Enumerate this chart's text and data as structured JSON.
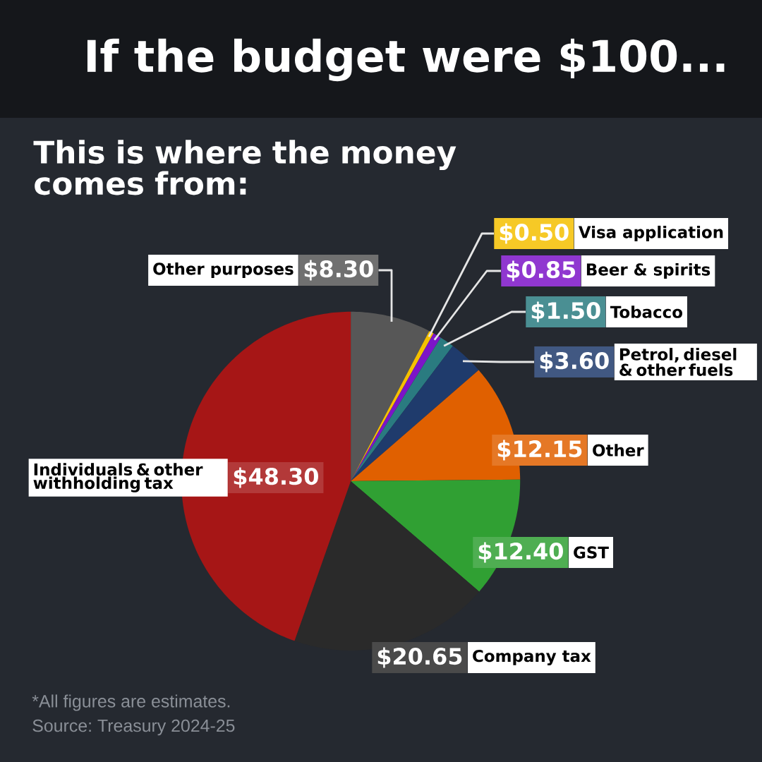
{
  "chart_data": {
    "type": "pie",
    "title": "If the budget were $100...",
    "subtitle": "This is where the money comes from:",
    "categories": [
      "Other purposes",
      "Visa application",
      "Beer & spirits",
      "Tobacco",
      "Petrol, diesel & other fuels",
      "Other",
      "GST",
      "Company tax",
      "Individuals & other withholding tax"
    ],
    "values": [
      8.3,
      0.5,
      0.85,
      1.5,
      3.6,
      12.15,
      12.4,
      20.65,
      48.3
    ],
    "colors": [
      "#575757",
      "#f5c000",
      "#7d14c8",
      "#2a7b80",
      "#1f3b6c",
      "#e06000",
      "#30a033",
      "#2a2a2a",
      "#a61616"
    ],
    "value_labels": [
      "$8.30",
      "$0.50",
      "$0.85",
      "$1.50",
      "$3.60",
      "$12.15",
      "$12.40",
      "$20.65",
      "$48.30"
    ],
    "annotations": [
      "*All figures are estimates.",
      "Source: Treasury 2024-25"
    ]
  }
}
